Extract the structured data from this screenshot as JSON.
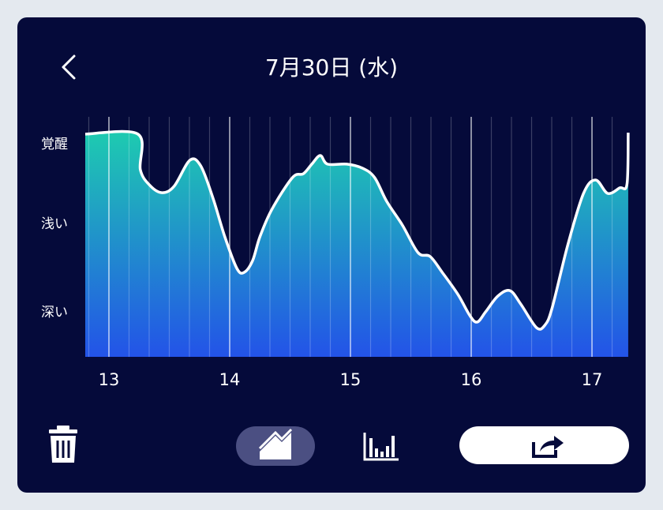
{
  "header": {
    "title": "7月30日 (水)"
  },
  "chart_data": {
    "type": "area",
    "x": [
      12.8,
      13.24,
      13.26,
      13.34,
      13.44,
      13.54,
      13.67,
      13.76,
      13.86,
      13.96,
      14.06,
      14.12,
      14.19,
      14.25,
      14.35,
      14.52,
      14.61,
      14.68,
      14.75,
      14.81,
      14.97,
      15.1,
      15.2,
      15.3,
      15.43,
      15.56,
      15.66,
      15.76,
      15.89,
      15.99,
      16.05,
      16.12,
      16.22,
      16.32,
      16.41,
      16.54,
      16.61,
      16.67,
      16.8,
      16.93,
      17.03,
      17.13,
      17.23,
      17.29,
      17.3
    ],
    "values": [
      92.8,
      92.8,
      78.0,
      71.4,
      68.4,
      71.1,
      81.9,
      79.6,
      66.4,
      50.0,
      36.8,
      35.2,
      40.1,
      50.0,
      61.5,
      74.7,
      76.3,
      80.3,
      83.9,
      80.3,
      80.3,
      78.6,
      74.7,
      64.8,
      54.9,
      43.4,
      41.8,
      35.2,
      26.0,
      17.1,
      14.5,
      18.8,
      25.3,
      27.6,
      22.0,
      12.2,
      13.2,
      20.4,
      46.7,
      68.1,
      73.7,
      68.1,
      70.4,
      72.0,
      93.4
    ],
    "xlim": [
      12.804,
      17.307
    ],
    "xticks": [
      13,
      14,
      15,
      16,
      17
    ],
    "ylim": [
      0,
      100
    ],
    "yticks": [
      {
        "value": 88.5,
        "label": "覚醒"
      },
      {
        "value": 55.3,
        "label": "浅い"
      },
      {
        "value": 18.4,
        "label": "深い"
      }
    ],
    "color_top": "#1ecbb0",
    "color_bottom": "#2353e8",
    "line_color": "#ffffff",
    "grid": true
  }
}
